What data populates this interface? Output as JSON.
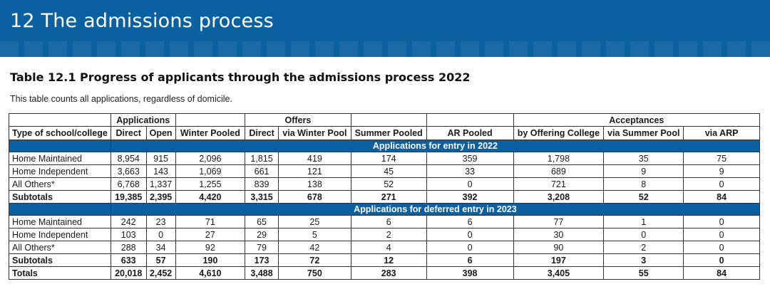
{
  "banner": {
    "title": "12 The admissions process"
  },
  "table_title": "Table 12.1 Progress of applicants through the admissions process 2022",
  "table_subtitle": "This table counts all applications, regardless of domicile.",
  "header": {
    "group_applications": "Applications",
    "group_offers": "Offers",
    "group_acceptances": "Acceptances",
    "col_type": "Type of school/college",
    "col_direct": "Direct",
    "col_open": "Open",
    "col_winter_pooled": "Winter Pooled",
    "col_offers_direct": "Direct",
    "col_via_winter_pool": "via Winter Pool",
    "col_summer_pooled": "Summer Pooled",
    "col_ar_pooled": "AR Pooled",
    "col_by_offering_college": "by Offering College",
    "col_via_summer_pool": "via Summer Pool",
    "col_via_arp": "via ARP"
  },
  "sections": [
    {
      "title": "Applications for entry in 2022",
      "rows": [
        {
          "label": "Home Maintained",
          "cells": [
            "8,954",
            "915",
            "2,096",
            "1,815",
            "419",
            "174",
            "359",
            "1,798",
            "35",
            "75"
          ]
        },
        {
          "label": "Home Independent",
          "cells": [
            "3,663",
            "143",
            "1,069",
            "661",
            "121",
            "45",
            "33",
            "689",
            "9",
            "9"
          ]
        },
        {
          "label": "All Others*",
          "cells": [
            "6,768",
            "1,337",
            "1,255",
            "839",
            "138",
            "52",
            "0",
            "721",
            "8",
            "0"
          ]
        }
      ],
      "subtotal": {
        "label": "Subtotals",
        "cells": [
          "19,385",
          "2,395",
          "4,420",
          "3,315",
          "678",
          "271",
          "392",
          "3,208",
          "52",
          "84"
        ]
      }
    },
    {
      "title": "Applications for deferred entry in 2023",
      "rows": [
        {
          "label": "Home Maintained",
          "cells": [
            "242",
            "23",
            "71",
            "65",
            "25",
            "6",
            "6",
            "77",
            "1",
            "0"
          ]
        },
        {
          "label": "Home Independent",
          "cells": [
            "103",
            "0",
            "27",
            "29",
            "5",
            "2",
            "0",
            "30",
            "0",
            "0"
          ]
        },
        {
          "label": "All Others*",
          "cells": [
            "288",
            "34",
            "92",
            "79",
            "42",
            "4",
            "0",
            "90",
            "2",
            "0"
          ]
        }
      ],
      "subtotal": {
        "label": "Subtotals",
        "cells": [
          "633",
          "57",
          "190",
          "173",
          "72",
          "12",
          "6",
          "197",
          "3",
          "0"
        ]
      }
    }
  ],
  "totals": {
    "label": "Totals",
    "cells": [
      "20,018",
      "2,452",
      "4,610",
      "3,488",
      "750",
      "283",
      "398",
      "3,405",
      "55",
      "84"
    ]
  }
}
